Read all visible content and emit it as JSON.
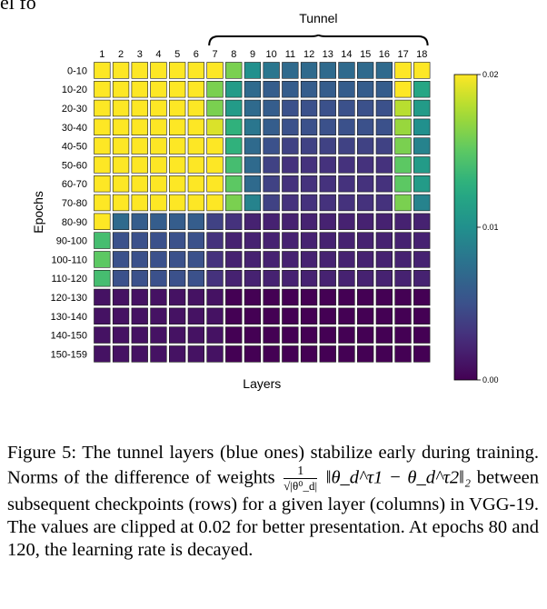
{
  "header": {
    "cut_text": "el fo"
  },
  "chart_data": {
    "type": "heatmap",
    "annotation": "Tunnel",
    "annotation_range": [
      7,
      18
    ],
    "xlabel": "Layers",
    "ylabel": "Epochs",
    "x": [
      "1",
      "2",
      "3",
      "4",
      "5",
      "6",
      "7",
      "8",
      "9",
      "10",
      "11",
      "12",
      "13",
      "14",
      "15",
      "16",
      "17",
      "18"
    ],
    "y": [
      "0-10",
      "10-20",
      "20-30",
      "30-40",
      "40-50",
      "50-60",
      "60-70",
      "70-80",
      "80-90",
      "90-100",
      "100-110",
      "110-120",
      "120-130",
      "130-140",
      "140-150",
      "150-159"
    ],
    "values": [
      [
        0.02,
        0.02,
        0.02,
        0.02,
        0.02,
        0.02,
        0.02,
        0.016,
        0.01,
        0.008,
        0.007,
        0.007,
        0.007,
        0.007,
        0.007,
        0.007,
        0.02,
        0.02
      ],
      [
        0.02,
        0.02,
        0.02,
        0.02,
        0.02,
        0.02,
        0.016,
        0.011,
        0.007,
        0.006,
        0.006,
        0.006,
        0.006,
        0.006,
        0.006,
        0.006,
        0.02,
        0.012
      ],
      [
        0.02,
        0.02,
        0.02,
        0.02,
        0.02,
        0.02,
        0.016,
        0.011,
        0.007,
        0.006,
        0.005,
        0.005,
        0.005,
        0.005,
        0.005,
        0.005,
        0.018,
        0.011
      ],
      [
        0.02,
        0.02,
        0.02,
        0.02,
        0.02,
        0.02,
        0.019,
        0.013,
        0.008,
        0.006,
        0.005,
        0.005,
        0.005,
        0.005,
        0.005,
        0.005,
        0.017,
        0.01
      ],
      [
        0.02,
        0.02,
        0.02,
        0.02,
        0.02,
        0.02,
        0.02,
        0.013,
        0.007,
        0.005,
        0.004,
        0.004,
        0.004,
        0.004,
        0.004,
        0.004,
        0.016,
        0.009
      ],
      [
        0.02,
        0.02,
        0.02,
        0.02,
        0.02,
        0.02,
        0.02,
        0.014,
        0.007,
        0.004,
        0.003,
        0.003,
        0.003,
        0.003,
        0.003,
        0.003,
        0.015,
        0.011
      ],
      [
        0.02,
        0.02,
        0.02,
        0.02,
        0.02,
        0.02,
        0.02,
        0.015,
        0.007,
        0.004,
        0.003,
        0.003,
        0.003,
        0.003,
        0.003,
        0.003,
        0.015,
        0.011
      ],
      [
        0.02,
        0.02,
        0.02,
        0.02,
        0.02,
        0.02,
        0.02,
        0.016,
        0.009,
        0.004,
        0.003,
        0.003,
        0.003,
        0.003,
        0.003,
        0.003,
        0.016,
        0.009
      ],
      [
        0.02,
        0.007,
        0.006,
        0.006,
        0.006,
        0.006,
        0.004,
        0.003,
        0.002,
        0.002,
        0.002,
        0.002,
        0.002,
        0.002,
        0.002,
        0.002,
        0.002,
        0.002
      ],
      [
        0.014,
        0.005,
        0.005,
        0.005,
        0.005,
        0.005,
        0.003,
        0.002,
        0.002,
        0.002,
        0.002,
        0.002,
        0.002,
        0.002,
        0.002,
        0.002,
        0.002,
        0.002
      ],
      [
        0.015,
        0.005,
        0.005,
        0.005,
        0.005,
        0.005,
        0.003,
        0.002,
        0.002,
        0.002,
        0.002,
        0.002,
        0.002,
        0.002,
        0.002,
        0.002,
        0.002,
        0.002
      ],
      [
        0.014,
        0.005,
        0.005,
        0.005,
        0.005,
        0.005,
        0.003,
        0.002,
        0.002,
        0.002,
        0.002,
        0.002,
        0.002,
        0.002,
        0.002,
        0.002,
        0.002,
        0.002
      ],
      [
        0.001,
        0.001,
        0.001,
        0.001,
        0.001,
        0.001,
        0.001,
        0.0,
        0.0,
        0.0,
        0.0,
        0.0,
        0.0,
        0.0,
        0.0,
        0.0,
        0.0,
        0.0
      ],
      [
        0.001,
        0.001,
        0.001,
        0.001,
        0.001,
        0.001,
        0.001,
        0.0,
        0.0,
        0.0,
        0.0,
        0.0,
        0.0,
        0.0,
        0.0,
        0.0,
        0.0,
        0.0
      ],
      [
        0.001,
        0.001,
        0.001,
        0.001,
        0.001,
        0.001,
        0.001,
        0.0,
        0.0,
        0.0,
        0.0,
        0.0,
        0.0,
        0.0,
        0.0,
        0.0,
        0.0,
        0.0
      ],
      [
        0.001,
        0.001,
        0.001,
        0.001,
        0.001,
        0.001,
        0.001,
        0.0,
        0.0,
        0.0,
        0.0,
        0.0,
        0.0,
        0.0,
        0.0,
        0.0,
        0.0,
        0.0
      ]
    ],
    "colorbar": {
      "min": 0.0,
      "max": 0.02,
      "ticks": [
        "0.00",
        "0.01",
        "0.02"
      ],
      "colormap": "viridis"
    }
  },
  "caption": {
    "label": "Figure 5:",
    "part1": "The tunnel layers (blue ones) stabilize early during training. Norms of the difference of weights",
    "frac_num": "1",
    "frac_den": "√|θ⁰_d|",
    "norm": "‖θ_d^τ1 − θ_d^τ2‖₂",
    "part2": "between subsequent checkpoints (rows) for a given layer (columns) in VGG-19. The values are clipped at 0.02 for better presentation. At epochs 80 and 120, the learning rate is decayed."
  }
}
